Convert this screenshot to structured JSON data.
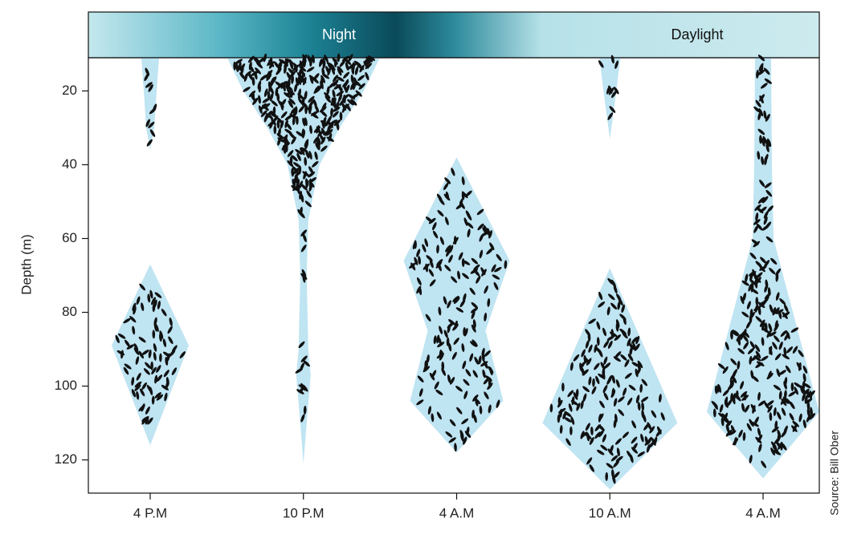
{
  "chart_data": {
    "type": "depth-profile",
    "header_labels": [
      "Night",
      "Daylight"
    ],
    "y_label": "Depth (m)",
    "ylim": [
      11,
      129
    ],
    "yticks": [
      20,
      40,
      60,
      80,
      100,
      120
    ],
    "y_inverted": true,
    "categories": [
      "4 P.M",
      "10 P.M",
      "4 A.M",
      "10 A.M",
      "4 A.M"
    ],
    "color": "#bfe4f2",
    "profiles": [
      [
        {
          "depth": [
            11,
            20,
            30,
            36
          ],
          "half_width": [
            11,
            8,
            5,
            0
          ]
        },
        {
          "depth": [
            67,
            89,
            116
          ],
          "half_width": [
            0,
            48,
            0
          ]
        }
      ],
      [
        {
          "depth": [
            11,
            20,
            30,
            40,
            55,
            70,
            90,
            97,
            110,
            121
          ],
          "half_width": [
            95,
            75,
            45,
            20,
            6,
            4,
            6,
            9,
            4,
            0
          ]
        }
      ],
      [
        {
          "depth": [
            38,
            66,
            85,
            104,
            118
          ],
          "half_width": [
            0,
            66,
            36,
            58,
            0
          ]
        }
      ],
      [
        {
          "depth": [
            11,
            20,
            33
          ],
          "half_width": [
            13,
            8,
            0
          ]
        },
        {
          "depth": [
            68,
            110,
            128
          ],
          "half_width": [
            0,
            84,
            0
          ]
        }
      ],
      [
        {
          "depth": [
            11,
            40,
            60,
            70,
            107,
            125
          ],
          "half_width": [
            10,
            11,
            13,
            25,
            70,
            0
          ]
        }
      ]
    ],
    "source": "Source: Bill Ober"
  }
}
